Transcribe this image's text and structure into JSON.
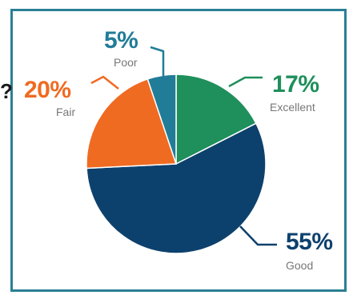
{
  "chart_data": {
    "type": "pie",
    "title": "",
    "slices": [
      {
        "label": "Excellent",
        "value": 17,
        "display": "17%",
        "color": "#1f8f5b"
      },
      {
        "label": "Good",
        "value": 55,
        "display": "55%",
        "color": "#0d416d"
      },
      {
        "label": "Fair",
        "value": 20,
        "display": "20%",
        "color": "#ef6b22"
      },
      {
        "label": "Poor",
        "value": 5,
        "display": "5%",
        "color": "#217c98"
      }
    ],
    "start_angle_deg": 0,
    "direction": "clockwise",
    "legend": "none"
  },
  "edge_glyph": "?"
}
